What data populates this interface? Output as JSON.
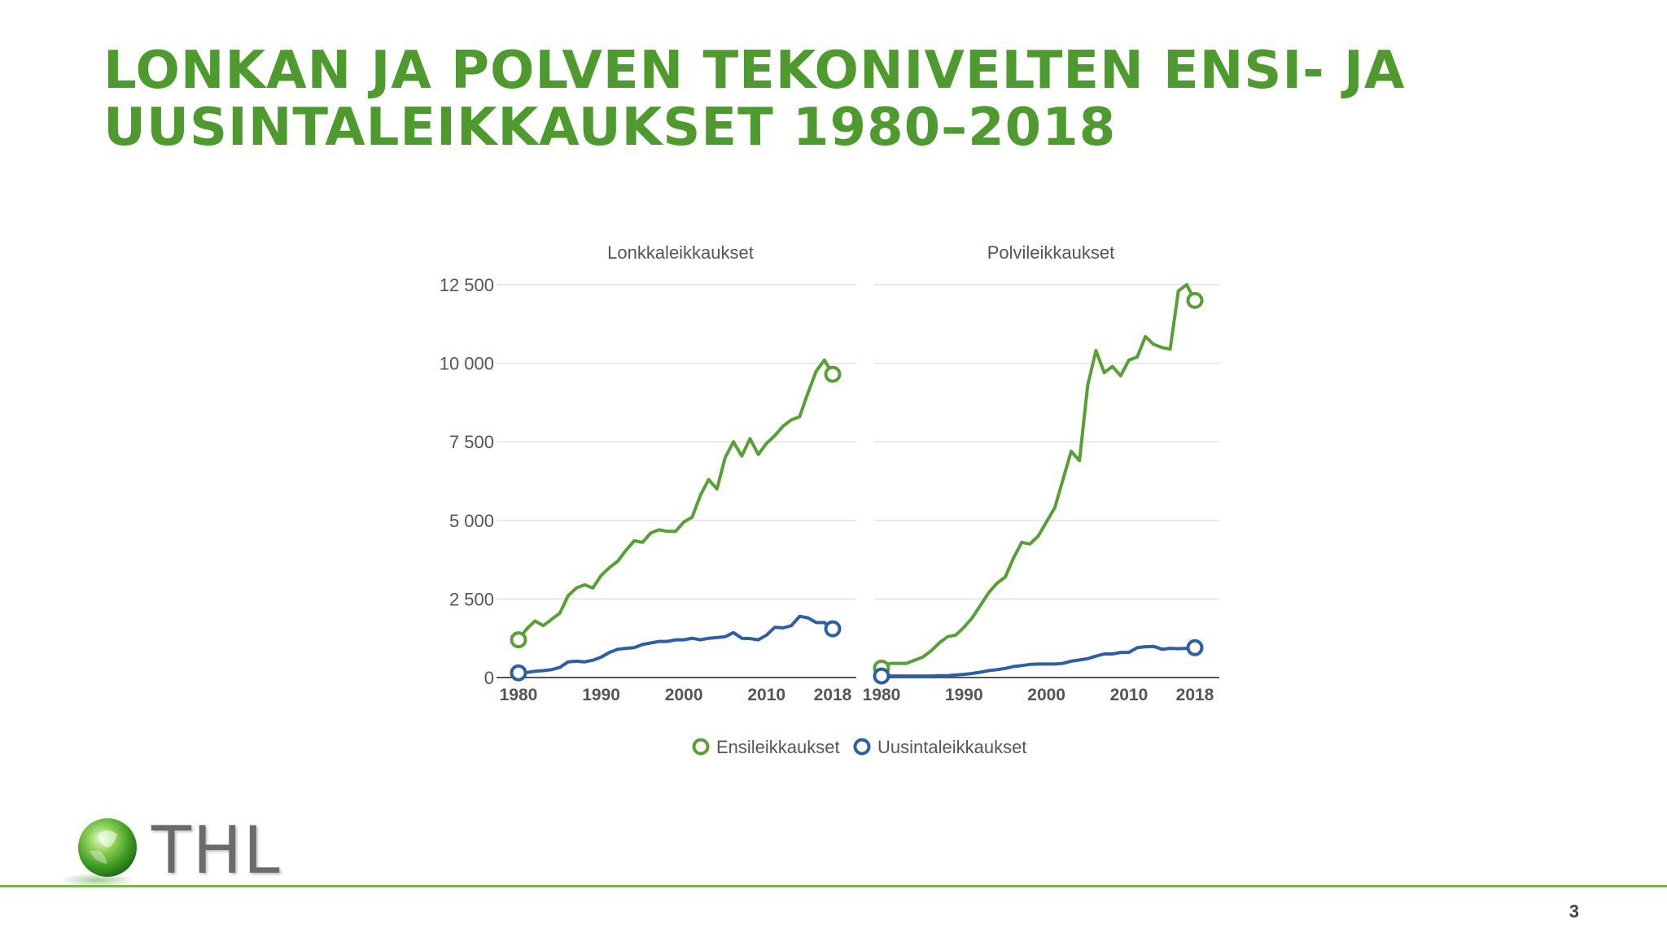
{
  "slide": {
    "title_line1": "LONKAN JA POLVEN TEKONIVELTEN ENSI- JA",
    "title_line2": "UUSINTALEIKKAUKSET 1980–2018",
    "logo_text": "THL",
    "page_number": "3"
  },
  "colors": {
    "title": "#4f9a2f",
    "series_primary": "#5a9e36",
    "series_revision": "#2f5fa3",
    "footer_line": "#78b84a"
  },
  "chart_data": {
    "type": "line",
    "y_tick_labels": [
      "0",
      "2 500",
      "5 000",
      "7 500",
      "10 000",
      "12 500"
    ],
    "y_ticks": [
      0,
      2500,
      5000,
      7500,
      10000,
      12500
    ],
    "ylim": [
      0,
      12500
    ],
    "grid": true,
    "legend": {
      "position": "bottom",
      "items": [
        "Ensileikkaukset",
        "Uusintaleikkaukset"
      ]
    },
    "panels": [
      {
        "title": "Lonkkaleikkaukset",
        "x_tick_labels": [
          "1980",
          "1990",
          "2000",
          "2010",
          "2018"
        ],
        "x": [
          1980,
          1981,
          1982,
          1983,
          1984,
          1985,
          1986,
          1987,
          1988,
          1989,
          1990,
          1991,
          1992,
          1993,
          1994,
          1995,
          1996,
          1997,
          1998,
          1999,
          2000,
          2001,
          2002,
          2003,
          2004,
          2005,
          2006,
          2007,
          2008,
          2009,
          2010,
          2011,
          2012,
          2013,
          2014,
          2015,
          2016,
          2017,
          2018
        ],
        "series": [
          {
            "name": "Ensileikkaukset",
            "values": [
              1200,
              1550,
              1800,
              1650,
              1850,
              2050,
              2600,
              2850,
              2950,
              2850,
              3250,
              3500,
              3700,
              4050,
              4350,
              4300,
              4600,
              4700,
              4650,
              4650,
              4950,
              5100,
              5800,
              6300,
              6000,
              7000,
              7500,
              7050,
              7600,
              7100,
              7450,
              7700,
              8000,
              8200,
              8300,
              9050,
              9750,
              10100,
              9650
            ]
          },
          {
            "name": "Uusintaleikkaukset",
            "values": [
              150,
              160,
              200,
              220,
              250,
              320,
              500,
              520,
              500,
              550,
              650,
              800,
              900,
              930,
              950,
              1050,
              1100,
              1150,
              1150,
              1200,
              1200,
              1250,
              1200,
              1250,
              1270,
              1300,
              1430,
              1250,
              1240,
              1200,
              1350,
              1600,
              1580,
              1650,
              1950,
              1900,
              1750,
              1750,
              1550
            ]
          }
        ]
      },
      {
        "title": "Polvileikkaukset",
        "x_tick_labels": [
          "1980",
          "1990",
          "2000",
          "2010",
          "2018"
        ],
        "x": [
          1980,
          1981,
          1982,
          1983,
          1984,
          1985,
          1986,
          1987,
          1988,
          1989,
          1990,
          1991,
          1992,
          1993,
          1994,
          1995,
          1996,
          1997,
          1998,
          1999,
          2000,
          2001,
          2002,
          2003,
          2004,
          2005,
          2006,
          2007,
          2008,
          2009,
          2010,
          2011,
          2012,
          2013,
          2014,
          2015,
          2016,
          2017,
          2018
        ],
        "series": [
          {
            "name": "Ensileikkaukset",
            "values": [
              300,
              450,
              450,
              450,
              550,
              650,
              850,
              1100,
              1300,
              1350,
              1600,
              1900,
              2300,
              2700,
              3000,
              3200,
              3800,
              4300,
              4250,
              4500,
              4950,
              5400,
              6300,
              7200,
              6900,
              9300,
              10400,
              9700,
              9900,
              9600,
              10100,
              10200,
              10850,
              10600,
              10500,
              10450,
              12300,
              12500,
              12000
            ]
          },
          {
            "name": "Uusintaleikkaukset",
            "values": [
              50,
              50,
              50,
              50,
              50,
              50,
              50,
              60,
              60,
              80,
              100,
              130,
              170,
              220,
              250,
              290,
              350,
              380,
              420,
              430,
              430,
              430,
              450,
              520,
              560,
              600,
              680,
              750,
              750,
              800,
              800,
              950,
              980,
              990,
              900,
              930,
              920,
              930,
              950
            ]
          }
        ]
      }
    ]
  }
}
